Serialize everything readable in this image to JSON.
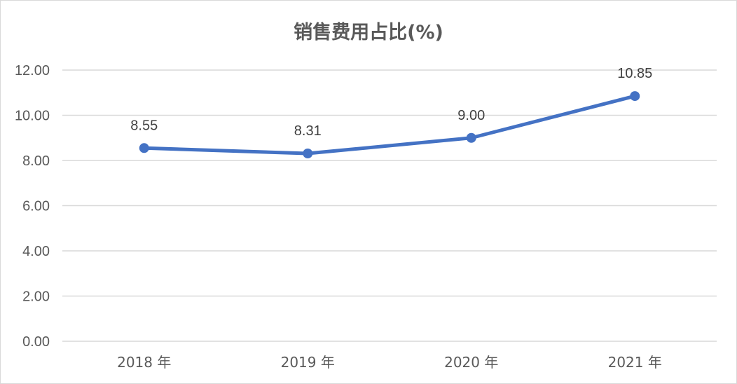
{
  "chart_data": {
    "type": "line",
    "title": "销售费用占比(%)",
    "categories": [
      "2018 年",
      "2019 年",
      "2020 年",
      "2021 年"
    ],
    "series": [
      {
        "values": [
          8.55,
          8.31,
          9.0,
          10.85
        ],
        "data_labels": [
          "8.55",
          "8.31",
          "9.00",
          "10.85"
        ]
      }
    ],
    "y_ticks": [
      "0.00",
      "2.00",
      "4.00",
      "6.00",
      "8.00",
      "10.00",
      "12.00"
    ],
    "ylim": [
      0,
      12
    ],
    "grid": true,
    "legend": "none",
    "line_color": "#4472c4",
    "grid_color": "#d9d9d9"
  }
}
